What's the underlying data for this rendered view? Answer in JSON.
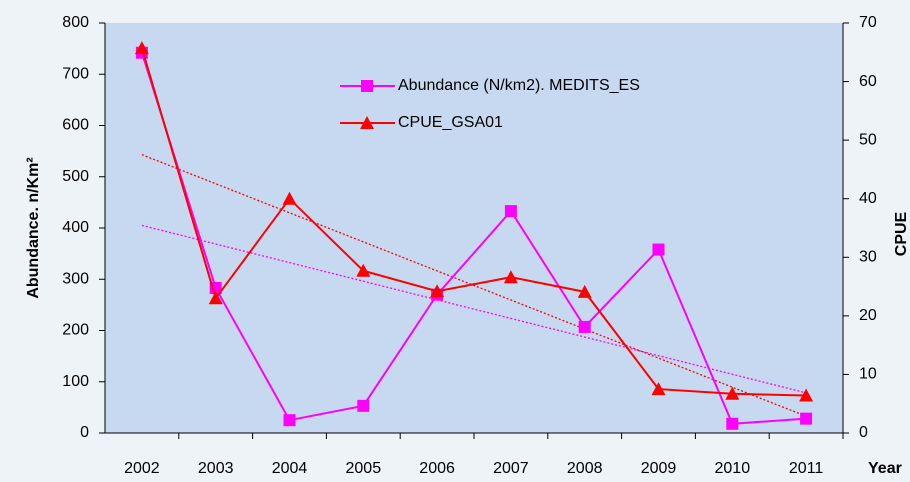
{
  "chart_data": {
    "type": "line",
    "categories": [
      "2002",
      "2003",
      "2004",
      "2005",
      "2006",
      "2007",
      "2008",
      "2009",
      "2010",
      "2011"
    ],
    "series": [
      {
        "name": "Abundance (N/km2). MEDITS_ES",
        "color": "#ff00ff",
        "marker": "square",
        "axis": "y",
        "values": [
          742,
          283,
          25,
          53,
          270,
          433,
          207,
          358,
          18,
          28
        ]
      },
      {
        "name": "CPUE_GSA01",
        "color": "#ff0000",
        "marker": "triangle",
        "axis": "y2",
        "values": [
          65.7,
          23,
          40,
          27.7,
          24.2,
          26.6,
          24.1,
          7.5,
          6.7,
          6.4
        ]
      }
    ],
    "ylabel": "Abundance. n/Km²",
    "y2label": "CPUE",
    "xlabel": "Year",
    "ylim": [
      0,
      800
    ],
    "yticks": [
      0,
      100,
      200,
      300,
      400,
      500,
      600,
      700,
      800
    ],
    "y2lim": [
      0,
      70
    ],
    "y2ticks": [
      0,
      10,
      20,
      30,
      40,
      50,
      60,
      70
    ],
    "trendlines": true
  }
}
